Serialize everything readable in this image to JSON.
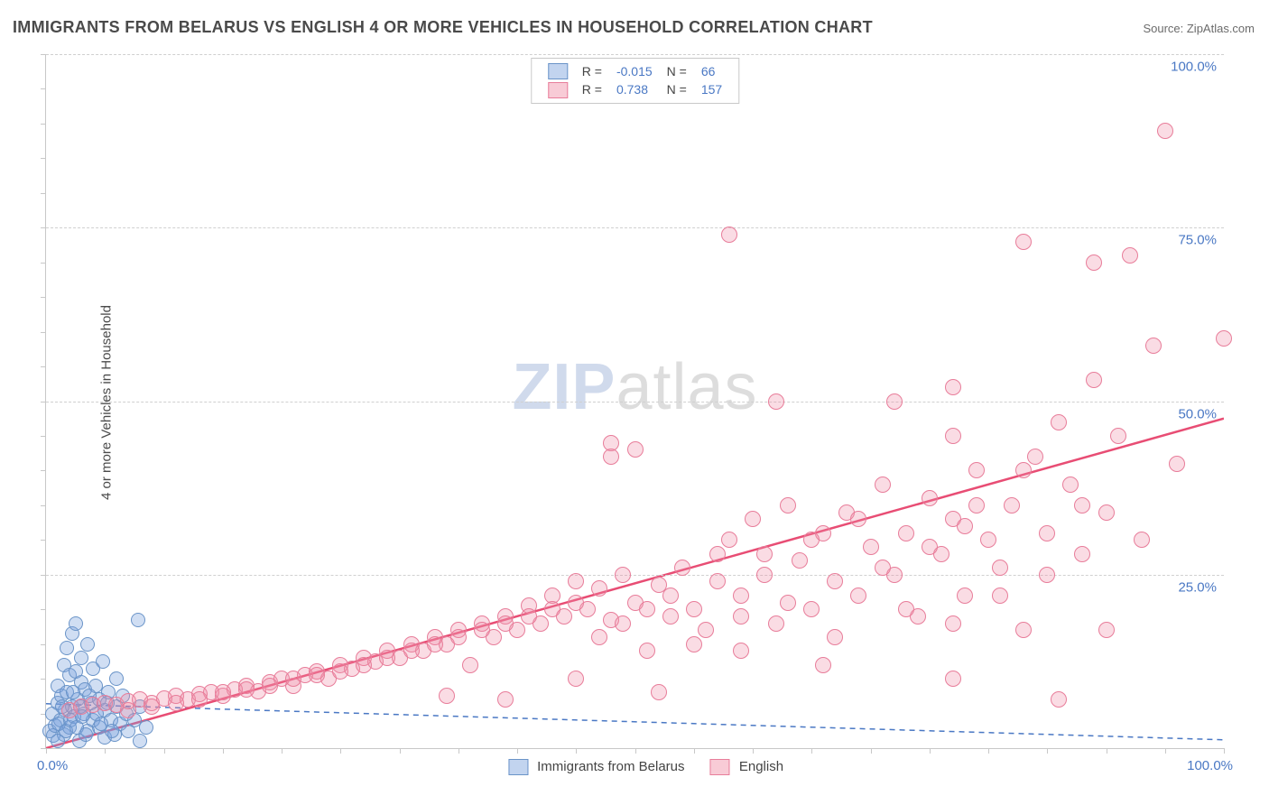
{
  "title": "IMMIGRANTS FROM BELARUS VS ENGLISH 4 OR MORE VEHICLES IN HOUSEHOLD CORRELATION CHART",
  "source_prefix": "Source: ",
  "source_name": "ZipAtlas.com",
  "ylabel": "4 or more Vehicles in Household",
  "watermark_a": "ZIP",
  "watermark_b": "atlas",
  "chart": {
    "type": "scatter",
    "background_color": "#ffffff",
    "grid_color": "#d0d0d0",
    "axis_color": "#c8c8c8",
    "label_color": "#4a78c4",
    "text_color": "#4a4a4a",
    "title_fontsize": 18,
    "label_fontsize": 15,
    "xlim": [
      0,
      100
    ],
    "ylim": [
      0,
      100
    ],
    "y_ticks": [
      25,
      50,
      75,
      100
    ],
    "y_tick_labels": [
      "25.0%",
      "50.0%",
      "75.0%",
      "100.0%"
    ],
    "x_minor_tick_step": 5,
    "x_axis_min_label": "0.0%",
    "x_axis_max_label": "100.0%",
    "series": [
      {
        "name": "Immigrants from Belarus",
        "color_fill": "rgba(120,160,220,0.35)",
        "color_stroke": "#6a94c8",
        "marker_size": 16,
        "R": "-0.015",
        "N": "66",
        "trend": {
          "y_at_x0": 6.4,
          "y_at_x100": 1.2,
          "stroke": "#4a78c4",
          "width": 1.5,
          "dash": "6,5"
        },
        "points": [
          [
            0.3,
            2.5
          ],
          [
            0.5,
            5.0
          ],
          [
            0.6,
            1.8
          ],
          [
            0.8,
            3.2
          ],
          [
            1.0,
            6.5
          ],
          [
            1.0,
            9.0
          ],
          [
            1.2,
            4.0
          ],
          [
            1.3,
            7.5
          ],
          [
            1.5,
            2.0
          ],
          [
            1.5,
            12.0
          ],
          [
            1.6,
            5.5
          ],
          [
            1.8,
            14.5
          ],
          [
            1.8,
            8.0
          ],
          [
            2.0,
            3.0
          ],
          [
            2.0,
            10.5
          ],
          [
            2.2,
            6.0
          ],
          [
            2.2,
            16.5
          ],
          [
            2.4,
            4.5
          ],
          [
            2.5,
            11.0
          ],
          [
            2.5,
            18.0
          ],
          [
            2.7,
            7.0
          ],
          [
            2.8,
            1.0
          ],
          [
            3.0,
            9.5
          ],
          [
            3.0,
            13.0
          ],
          [
            3.2,
            5.0
          ],
          [
            3.3,
            8.5
          ],
          [
            3.5,
            2.5
          ],
          [
            3.5,
            15.0
          ],
          [
            3.8,
            6.5
          ],
          [
            4.0,
            11.5
          ],
          [
            4.0,
            4.0
          ],
          [
            4.2,
            9.0
          ],
          [
            4.5,
            7.0
          ],
          [
            4.5,
            3.0
          ],
          [
            4.8,
            12.5
          ],
          [
            5.0,
            5.5
          ],
          [
            5.0,
            1.5
          ],
          [
            5.3,
            8.0
          ],
          [
            5.5,
            4.0
          ],
          [
            5.8,
            2.0
          ],
          [
            6.0,
            6.0
          ],
          [
            6.0,
            10.0
          ],
          [
            6.3,
            3.5
          ],
          [
            6.5,
            7.5
          ],
          [
            6.8,
            5.0
          ],
          [
            7.0,
            2.5
          ],
          [
            7.5,
            4.0
          ],
          [
            8.0,
            6.0
          ],
          [
            8.0,
            1.0
          ],
          [
            8.5,
            3.0
          ],
          [
            1.0,
            1.0
          ],
          [
            1.1,
            3.5
          ],
          [
            1.4,
            6.0
          ],
          [
            1.7,
            2.5
          ],
          [
            2.1,
            4.0
          ],
          [
            2.3,
            8.0
          ],
          [
            2.6,
            3.0
          ],
          [
            2.9,
            6.0
          ],
          [
            3.1,
            4.5
          ],
          [
            3.4,
            2.0
          ],
          [
            3.7,
            7.5
          ],
          [
            4.3,
            5.0
          ],
          [
            4.7,
            3.5
          ],
          [
            5.2,
            6.5
          ],
          [
            5.6,
            2.5
          ],
          [
            7.8,
            18.5
          ]
        ]
      },
      {
        "name": "English",
        "color_fill": "rgba(240,140,165,0.30)",
        "color_stroke": "#e87d9a",
        "marker_size": 18,
        "R": "0.738",
        "N": "157",
        "trend": {
          "y_at_x0": 0.0,
          "y_at_x100": 47.5,
          "stroke": "#e84d74",
          "width": 2.5,
          "dash": ""
        },
        "points": [
          [
            2,
            5.5
          ],
          [
            3,
            6.0
          ],
          [
            4,
            6.2
          ],
          [
            5,
            6.5
          ],
          [
            6,
            6.3
          ],
          [
            7,
            6.8
          ],
          [
            8,
            7.0
          ],
          [
            9,
            6.5
          ],
          [
            10,
            7.2
          ],
          [
            11,
            7.5
          ],
          [
            12,
            7.0
          ],
          [
            13,
            7.8
          ],
          [
            14,
            8.0
          ],
          [
            15,
            7.5
          ],
          [
            16,
            8.5
          ],
          [
            17,
            9.0
          ],
          [
            18,
            8.2
          ],
          [
            19,
            9.5
          ],
          [
            20,
            10.0
          ],
          [
            21,
            9.0
          ],
          [
            22,
            10.5
          ],
          [
            23,
            11.0
          ],
          [
            24,
            10.0
          ],
          [
            25,
            12.0
          ],
          [
            26,
            11.5
          ],
          [
            27,
            13.0
          ],
          [
            28,
            12.5
          ],
          [
            29,
            14.0
          ],
          [
            30,
            13.0
          ],
          [
            31,
            15.0
          ],
          [
            32,
            14.0
          ],
          [
            33,
            16.0
          ],
          [
            34,
            15.0
          ],
          [
            35,
            17.0
          ],
          [
            36,
            12.0
          ],
          [
            37,
            18.0
          ],
          [
            38,
            16.0
          ],
          [
            39,
            19.0
          ],
          [
            40,
            17.0
          ],
          [
            41,
            20.5
          ],
          [
            42,
            18.0
          ],
          [
            43,
            22.0
          ],
          [
            44,
            19.0
          ],
          [
            45,
            24.0
          ],
          [
            46,
            20.0
          ],
          [
            47,
            23.0
          ],
          [
            48,
            18.5
          ],
          [
            49,
            25.0
          ],
          [
            50,
            21.0
          ],
          [
            51,
            14.0
          ],
          [
            52,
            23.5
          ],
          [
            53,
            19.0
          ],
          [
            54,
            26.0
          ],
          [
            55,
            20.0
          ],
          [
            56,
            17.0
          ],
          [
            57,
            28.0
          ],
          [
            58,
            30.0
          ],
          [
            59,
            22.0
          ],
          [
            60,
            33.0
          ],
          [
            61,
            25.0
          ],
          [
            62,
            18.0
          ],
          [
            63,
            35.0
          ],
          [
            64,
            27.0
          ],
          [
            65,
            20.0
          ],
          [
            66,
            31.0
          ],
          [
            67,
            16.0
          ],
          [
            68,
            34.0
          ],
          [
            69,
            22.0
          ],
          [
            70,
            29.0
          ],
          [
            71,
            38.0
          ],
          [
            72,
            25.0
          ],
          [
            73,
            31.0
          ],
          [
            74,
            19.0
          ],
          [
            75,
            36.0
          ],
          [
            76,
            28.0
          ],
          [
            77,
            33.0
          ],
          [
            78,
            22.0
          ],
          [
            79,
            40.0
          ],
          [
            80,
            30.0
          ],
          [
            81,
            26.0
          ],
          [
            82,
            35.0
          ],
          [
            83,
            17.0
          ],
          [
            84,
            42.0
          ],
          [
            85,
            31.0
          ],
          [
            86,
            47.0
          ],
          [
            87,
            38.0
          ],
          [
            88,
            28.0
          ],
          [
            89,
            53.0
          ],
          [
            90,
            34.0
          ],
          [
            91,
            45.0
          ],
          [
            92,
            71.0
          ],
          [
            93,
            30.0
          ],
          [
            94,
            58.0
          ],
          [
            95,
            89.0
          ],
          [
            96,
            41.0
          ],
          [
            100,
            59.0
          ],
          [
            48,
            42.0
          ],
          [
            48,
            44.0
          ],
          [
            50,
            43.0
          ],
          [
            58,
            74.0
          ],
          [
            62,
            50.0
          ],
          [
            72,
            50.0
          ],
          [
            77,
            45.0
          ],
          [
            77,
            52.0
          ],
          [
            78,
            32.0
          ],
          [
            83,
            73.0
          ],
          [
            86,
            7.0
          ],
          [
            88,
            35.0
          ],
          [
            89,
            70.0
          ],
          [
            90,
            17.0
          ],
          [
            7,
            5.5
          ],
          [
            9,
            6.0
          ],
          [
            11,
            6.5
          ],
          [
            13,
            7.0
          ],
          [
            15,
            8.0
          ],
          [
            17,
            8.5
          ],
          [
            19,
            9.0
          ],
          [
            21,
            10.0
          ],
          [
            23,
            10.5
          ],
          [
            25,
            11.0
          ],
          [
            27,
            12.0
          ],
          [
            29,
            13.0
          ],
          [
            31,
            14.0
          ],
          [
            33,
            15.0
          ],
          [
            35,
            16.0
          ],
          [
            37,
            17.0
          ],
          [
            39,
            18.0
          ],
          [
            41,
            19.0
          ],
          [
            43,
            20.0
          ],
          [
            45,
            21.0
          ],
          [
            47,
            16.0
          ],
          [
            49,
            18.0
          ],
          [
            51,
            20.0
          ],
          [
            53,
            22.0
          ],
          [
            55,
            15.0
          ],
          [
            57,
            24.0
          ],
          [
            59,
            19.0
          ],
          [
            61,
            28.0
          ],
          [
            63,
            21.0
          ],
          [
            65,
            30.0
          ],
          [
            67,
            24.0
          ],
          [
            69,
            33.0
          ],
          [
            71,
            26.0
          ],
          [
            73,
            20.0
          ],
          [
            75,
            29.0
          ],
          [
            77,
            18.0
          ],
          [
            79,
            35.0
          ],
          [
            81,
            22.0
          ],
          [
            83,
            40.0
          ],
          [
            85,
            25.0
          ],
          [
            77,
            10.0
          ],
          [
            66,
            12.0
          ],
          [
            59,
            14.0
          ],
          [
            52,
            8.0
          ],
          [
            45,
            10.0
          ],
          [
            39,
            7.0
          ],
          [
            34,
            7.5
          ]
        ]
      }
    ],
    "legend_bottom": [
      {
        "swatch": "blue",
        "label": "Immigrants from Belarus"
      },
      {
        "swatch": "pink",
        "label": "English"
      }
    ]
  }
}
